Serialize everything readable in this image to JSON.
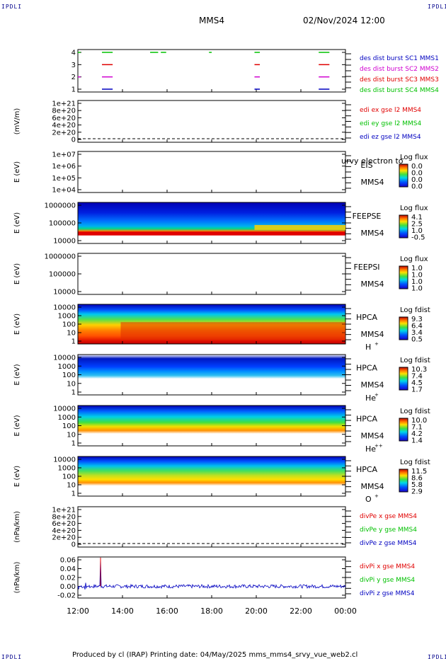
{
  "corners": {
    "tl": "IPDLI",
    "tr": "IPDLI",
    "bl": "IPDLI",
    "br": "IPDLI"
  },
  "header": {
    "spacecraft": "MMS4",
    "datetime": "02/Nov/2024 12:00"
  },
  "footer": {
    "text": "Produced by cl (IRAP)   Printing date: 04/May/2025   mms_mms4_srvy_vue_web2.cl"
  },
  "colors": {
    "red": "#e00000",
    "green": "#00c000",
    "blue": "#0000c0",
    "magenta": "#d000d0"
  },
  "chart_data": [
    {
      "id": "burst",
      "type": "line",
      "ylabel": "",
      "yticks": [
        "4",
        "3",
        "2",
        "1"
      ],
      "legend": [
        {
          "name": "des dist burst SC1 MMS1",
          "color": "#0000c0"
        },
        {
          "name": "des dist burst SC2 MMS2",
          "color": "#d000d0"
        },
        {
          "name": "des dist burst SC3 MMS3",
          "color": "#e00000"
        },
        {
          "name": "des dist burst SC4 MMS4",
          "color": "#00c000"
        }
      ]
    },
    {
      "id": "edi",
      "type": "line",
      "ylabel": "(mV/m)",
      "yticks": [
        "1e+21",
        "8e+20",
        "6e+20",
        "4e+20",
        "2e+20",
        "0"
      ],
      "legend": [
        {
          "name": "edi ex gse l2 MMS4",
          "color": "#e00000"
        },
        {
          "name": "edi ey gse l2 MMS4",
          "color": "#00c000"
        },
        {
          "name": "edi ez gse l2 MMS4",
          "color": "#0000c0"
        }
      ]
    },
    {
      "id": "eis",
      "type": "heatmap",
      "ylabel": "E (eV)",
      "yticks": [
        "1e+07",
        "1e+06",
        "1e+05",
        "1e+04"
      ],
      "labels": [
        "EIS",
        "MMS4"
      ],
      "overlap_label": "urvy electron to",
      "cb_title": "Log flux",
      "cb_ticks": [
        "0.0",
        "0.0",
        "0.0",
        "0.0"
      ]
    },
    {
      "id": "feepse",
      "type": "heatmap",
      "ylabel": "E (eV)",
      "yticks": [
        "1000000",
        "100000",
        "10000"
      ],
      "labels": [
        "FEEPSE",
        "MMS4"
      ],
      "cb_title": "Log flux",
      "cb_ticks": [
        "4.1",
        "2.5",
        "1.0",
        "-0.5"
      ]
    },
    {
      "id": "feepsi",
      "type": "heatmap",
      "ylabel": "E (eV)",
      "yticks": [
        "1000000",
        "100000",
        "10000"
      ],
      "labels": [
        "FEEPSI",
        "MMS4"
      ],
      "cb_title": "Log flux",
      "cb_ticks": [
        "1.0",
        "1.0",
        "1.0",
        "1.0"
      ]
    },
    {
      "id": "hpca_h",
      "type": "heatmap",
      "ylabel": "E (eV)",
      "yticks": [
        "10000",
        "1000",
        "100",
        "10",
        "1"
      ],
      "labels": [
        "HPCA",
        "MMS4"
      ],
      "species": "H",
      "charge": "+",
      "cb_title": "Log fdist",
      "cb_ticks": [
        "9.3",
        "6.4",
        "3.4",
        "0.5"
      ]
    },
    {
      "id": "hpca_he",
      "type": "heatmap",
      "ylabel": "E (eV)",
      "yticks": [
        "10000",
        "1000",
        "100",
        "10",
        "1"
      ],
      "labels": [
        "HPCA",
        "MMS4"
      ],
      "species": "He",
      "charge": "+",
      "cb_title": "Log fdist",
      "cb_ticks": [
        "10.3",
        "7.4",
        "4.5",
        "1.7"
      ]
    },
    {
      "id": "hpca_he2",
      "type": "heatmap",
      "ylabel": "E (eV)",
      "yticks": [
        "10000",
        "1000",
        "100",
        "10",
        "1"
      ],
      "labels": [
        "HPCA",
        "MMS4"
      ],
      "species": "He",
      "charge": "++",
      "cb_title": "Log fdist",
      "cb_ticks": [
        "10.0",
        "7.1",
        "4.2",
        "1.4"
      ]
    },
    {
      "id": "hpca_o",
      "type": "heatmap",
      "ylabel": "E (eV)",
      "yticks": [
        "10000",
        "1000",
        "100",
        "10",
        "1"
      ],
      "labels": [
        "HPCA",
        "MMS4"
      ],
      "species": "O",
      "charge": "+",
      "cb_title": "Log fdist",
      "cb_ticks": [
        "11.5",
        "8.6",
        "5.8",
        "2.9"
      ]
    },
    {
      "id": "divpe",
      "type": "line",
      "ylabel": "(nPa/km)",
      "yticks": [
        "1e+21",
        "8e+20",
        "6e+20",
        "4e+20",
        "2e+20",
        "0"
      ],
      "legend": [
        {
          "name": "divPe x gse MMS4",
          "color": "#e00000"
        },
        {
          "name": "divPe y gse MMS4",
          "color": "#00c000"
        },
        {
          "name": "divPe z gse MMS4",
          "color": "#0000c0"
        }
      ]
    },
    {
      "id": "divpi",
      "type": "line",
      "ylabel": "(nPa/km)",
      "yticks": [
        "0.06",
        "0.04",
        "0.02",
        "0.00",
        "-0.02"
      ],
      "legend": [
        {
          "name": "divPi x gse MMS4",
          "color": "#e00000"
        },
        {
          "name": "divPi y gse MMS4",
          "color": "#00c000"
        },
        {
          "name": "divPi z gse MMS4",
          "color": "#0000c0"
        }
      ]
    }
  ],
  "xaxis": {
    "ticks": [
      "12:00",
      "14:00",
      "16:00",
      "18:00",
      "20:00",
      "22:00",
      "00:00"
    ]
  }
}
